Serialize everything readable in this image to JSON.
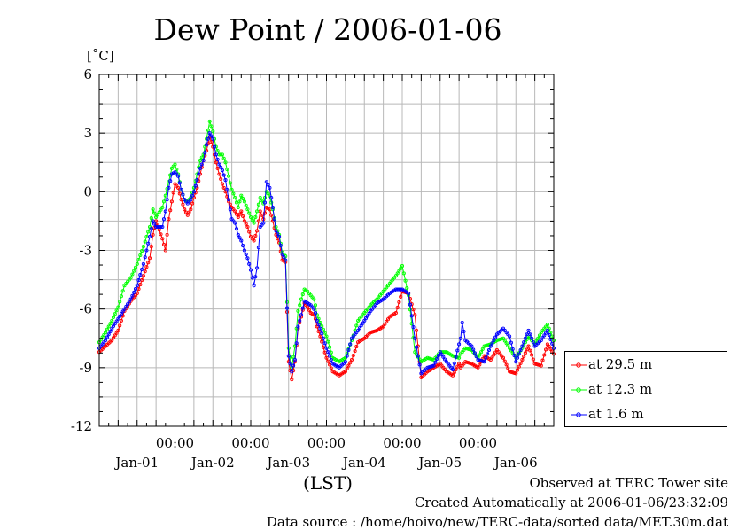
{
  "chart_data": {
    "type": "line",
    "title": "Dew Point / 2006-01-06",
    "ylabel": "[˚C]",
    "xlabel": "(LST)",
    "ylim": [
      -12,
      6
    ],
    "yticks": [
      6,
      3,
      0,
      -3,
      -6,
      -9,
      -12
    ],
    "ytick_labels": [
      "6",
      "3",
      "0",
      "-3",
      "-6",
      "-9",
      "-12"
    ],
    "xlim": [
      0,
      144
    ],
    "xticks": [
      {
        "hour": 24,
        "time": "00:00",
        "date": "Jan-01"
      },
      {
        "hour": 48,
        "time": "00:00",
        "date": "Jan-02"
      },
      {
        "hour": 72,
        "time": "00:00",
        "date": "Jan-03"
      },
      {
        "hour": 96,
        "time": "00:00",
        "date": "Jan-04"
      },
      {
        "hour": 120,
        "time": "00:00",
        "date": "Jan-05"
      },
      {
        "hour": 144,
        "time": "",
        "date": "Jan-06"
      }
    ],
    "grid": true,
    "legend_position": "right",
    "series": [
      {
        "name": "at 29.5 m",
        "color": "#ff0000",
        "x": [
          0,
          2,
          4,
          6,
          8,
          10,
          12,
          14,
          16,
          17,
          18,
          20,
          21,
          22,
          23,
          24,
          25,
          26,
          27,
          28,
          29,
          30,
          31,
          32,
          33,
          34,
          35,
          36,
          37,
          38,
          39,
          40,
          41,
          42,
          43,
          44,
          45,
          46,
          47,
          48,
          49,
          50,
          51,
          52,
          53,
          54,
          55,
          56,
          57,
          58,
          59,
          60,
          61,
          62,
          63,
          64,
          65,
          66,
          67,
          68,
          68.5,
          69,
          70,
          72,
          74,
          76,
          78,
          80,
          82,
          84,
          86,
          88,
          90,
          92,
          94,
          96,
          98,
          100,
          102,
          104,
          106,
          108,
          110,
          112,
          114,
          114.5,
          115,
          116,
          118,
          120,
          122,
          124,
          126,
          128,
          130,
          132,
          134,
          136,
          138,
          140,
          142,
          144
        ],
        "y": [
          -8.2,
          -7.9,
          -7.6,
          -7.1,
          -6.1,
          -5.6,
          -5.2,
          -4.3,
          -3.4,
          -2.2,
          -1.5,
          -2.4,
          -3.0,
          -1.4,
          -0.5,
          0.4,
          0.2,
          -0.4,
          -0.9,
          -1.2,
          -0.9,
          -0.3,
          0.2,
          0.9,
          1.6,
          2.1,
          2.8,
          2.3,
          1.5,
          0.9,
          0.4,
          0.0,
          -0.5,
          -0.8,
          -1.0,
          -1.3,
          -1.0,
          -1.5,
          -1.8,
          -2.3,
          -2.5,
          -2.0,
          -1.0,
          -1.4,
          -0.8,
          -0.9,
          -1.5,
          -2.2,
          -2.6,
          -3.5,
          -3.6,
          -8.7,
          -9.6,
          -8.7,
          -7.0,
          -6.4,
          -5.7,
          -5.9,
          -6.2,
          -6.3,
          -6.5,
          -6.9,
          -7.4,
          -8.5,
          -9.2,
          -9.4,
          -9.2,
          -8.6,
          -7.7,
          -7.5,
          -7.2,
          -7.1,
          -6.9,
          -6.4,
          -6.2,
          -5.1,
          -5.2,
          -6.3,
          -9.5,
          -9.2,
          -9.0,
          -8.8,
          -9.2,
          -9.4,
          -8.8,
          -9.0,
          -8.9,
          -8.7,
          -8.8,
          -9.0,
          -8.4,
          -8.6,
          -8.1,
          -8.5,
          -9.2,
          -9.3,
          -8.6,
          -7.9,
          -8.8,
          -8.9,
          -7.8,
          -8.3
        ],
        "y_note": ""
      },
      {
        "name": "at 12.3 m",
        "color": "#00ff00",
        "x": [
          0,
          2,
          4,
          6,
          8,
          10,
          12,
          14,
          16,
          17,
          18,
          20,
          21,
          22,
          23,
          24,
          25,
          26,
          27,
          28,
          29,
          30,
          31,
          32,
          33,
          34,
          35,
          36,
          37,
          38,
          39,
          40,
          41,
          42,
          43,
          44,
          45,
          46,
          47,
          48,
          49,
          50,
          51,
          52,
          53,
          54,
          55,
          56,
          57,
          58,
          59,
          60,
          61,
          62,
          63,
          64,
          65,
          66,
          67,
          68,
          68.5,
          69,
          70,
          72,
          74,
          76,
          78,
          80,
          82,
          84,
          86,
          88,
          90,
          92,
          94,
          96,
          98,
          100,
          102,
          104,
          106,
          108,
          110,
          112,
          114,
          114.5,
          115,
          116,
          118,
          120,
          122,
          124,
          126,
          128,
          130,
          132,
          134,
          136,
          138,
          140,
          142,
          144
        ],
        "y": [
          -7.7,
          -7.2,
          -6.6,
          -5.9,
          -4.8,
          -4.4,
          -3.7,
          -2.8,
          -1.8,
          -0.9,
          -1.3,
          -0.8,
          -0.2,
          0.5,
          1.2,
          1.4,
          0.9,
          0.1,
          -0.4,
          -0.5,
          -0.3,
          0.2,
          0.9,
          1.6,
          1.9,
          2.7,
          3.6,
          3.1,
          2.3,
          1.9,
          1.9,
          1.5,
          0.8,
          0.1,
          -0.3,
          -0.8,
          -0.2,
          -0.5,
          -0.9,
          -1.3,
          -1.6,
          -1.0,
          -0.3,
          -0.6,
          0.0,
          -0.2,
          -0.9,
          -1.8,
          -2.2,
          -3.1,
          -3.3,
          -8.0,
          -9.0,
          -7.9,
          -6.1,
          -5.5,
          -5.0,
          -5.1,
          -5.3,
          -5.5,
          -5.8,
          -6.3,
          -6.7,
          -7.4,
          -8.5,
          -8.7,
          -8.5,
          -7.6,
          -6.6,
          -6.2,
          -5.8,
          -5.5,
          -5.1,
          -4.7,
          -4.3,
          -3.8,
          -5.3,
          -8.2,
          -8.7,
          -8.5,
          -8.6,
          -8.2,
          -8.2,
          -8.4,
          -8.5,
          -8.3,
          -8.2,
          -8.0,
          -8.1,
          -8.5,
          -7.9,
          -7.8,
          -7.6,
          -7.5,
          -8.0,
          -8.5,
          -8.0,
          -7.4,
          -7.8,
          -7.2,
          -6.8,
          -7.6
        ],
        "y_note": ""
      },
      {
        "name": "at 1.6 m",
        "color": "#0000ff",
        "x": [
          0,
          2,
          4,
          6,
          8,
          10,
          12,
          14,
          16,
          17,
          18,
          20,
          21,
          22,
          23,
          24,
          25,
          26,
          27,
          28,
          29,
          30,
          31,
          32,
          33,
          34,
          35,
          36,
          37,
          38,
          39,
          40,
          41,
          42,
          43,
          44,
          45,
          46,
          47,
          48,
          49,
          50,
          51,
          52,
          53,
          54,
          55,
          56,
          57,
          58,
          59,
          60,
          61,
          62,
          63,
          64,
          65,
          66,
          67,
          68,
          68.5,
          69,
          70,
          72,
          74,
          76,
          78,
          80,
          82,
          84,
          86,
          88,
          90,
          92,
          94,
          96,
          98,
          100,
          102,
          104,
          106,
          108,
          110,
          112,
          114,
          114.5,
          115,
          116,
          118,
          120,
          122,
          124,
          126,
          128,
          130,
          132,
          134,
          136,
          138,
          140,
          142,
          144
        ],
        "y": [
          -8.0,
          -7.6,
          -7.0,
          -6.5,
          -6.0,
          -5.5,
          -4.8,
          -3.7,
          -2.3,
          -1.5,
          -1.8,
          -1.8,
          -1.0,
          0.2,
          0.9,
          1.0,
          0.8,
          0.1,
          -0.4,
          -0.6,
          -0.4,
          0.0,
          0.6,
          1.2,
          1.6,
          2.4,
          3.0,
          2.7,
          1.9,
          1.4,
          1.1,
          0.6,
          -0.4,
          -1.4,
          -1.6,
          -2.2,
          -2.5,
          -3.0,
          -3.4,
          -4.0,
          -4.8,
          -3.9,
          -1.8,
          -1.6,
          0.5,
          0.2,
          -0.8,
          -2.0,
          -2.3,
          -3.2,
          -3.5,
          -8.4,
          -9.2,
          -8.6,
          -6.9,
          -6.3,
          -5.6,
          -5.7,
          -5.8,
          -6.0,
          -6.2,
          -6.6,
          -7.0,
          -8.0,
          -8.8,
          -9.0,
          -8.7,
          -7.5,
          -7.1,
          -6.6,
          -6.1,
          -5.7,
          -5.5,
          -5.2,
          -5.0,
          -5.0,
          -5.2,
          -7.5,
          -9.3,
          -9.0,
          -8.9,
          -8.2,
          -8.7,
          -9.1,
          -7.8,
          -7.5,
          -6.7,
          -7.6,
          -7.9,
          -8.6,
          -8.7,
          -7.9,
          -7.3,
          -7.0,
          -7.4,
          -8.7,
          -7.9,
          -7.1,
          -7.9,
          -7.6,
          -7.1,
          -8.0
        ],
        "y_note": ""
      }
    ]
  },
  "footer": {
    "line1": "Observed at TERC Tower site",
    "line2": "Created Automatically at 2006-01-06/23:32:09",
    "line3": "Data source : /home/hoivo/new/TERC-data/sorted  data/MET.30m.dat"
  }
}
